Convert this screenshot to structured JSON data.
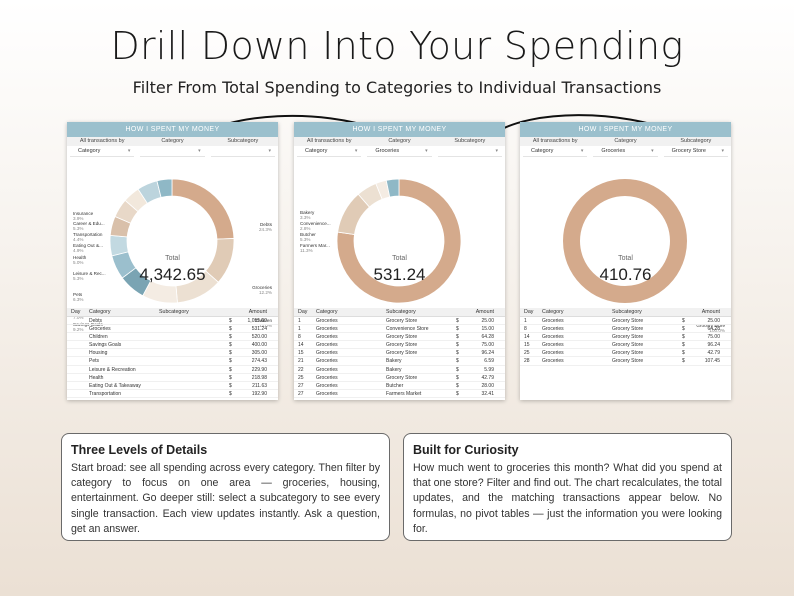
{
  "header": {
    "title": "Drill Down Into Your Spending",
    "subtitle": "Filter From Total Spending to Categories to Individual Transactions"
  },
  "panels": [
    {
      "heading": "HOW I SPENT MY MONEY",
      "filter_labels": [
        "All transactions by",
        "Category",
        "Subcategory"
      ],
      "filter_values": [
        "Category",
        "",
        ""
      ],
      "total_label": "Total",
      "total_value": "4,342.65",
      "segment_labels": [
        {
          "name": "Insurance",
          "pct": "3.9%"
        },
        {
          "name": "Career & Edu...",
          "pct": "5.3%"
        },
        {
          "name": "Transportation",
          "pct": "4.4%"
        },
        {
          "name": "Eating Out &...",
          "pct": "4.9%"
        },
        {
          "name": "Health",
          "pct": "5.0%"
        },
        {
          "name": "Leisure & Rec...",
          "pct": "5.3%"
        },
        {
          "name": "Pets",
          "pct": "6.3%"
        },
        {
          "name": "Housing",
          "pct": "7.0%"
        },
        {
          "name": "Savings Goals",
          "pct": "9.2%"
        },
        {
          "name": "Debts",
          "pct": "24.3%"
        },
        {
          "name": "Groceries",
          "pct": "12.2%"
        },
        {
          "name": "Children",
          "pct": "12.0%"
        }
      ],
      "table_headers": [
        "Day",
        "Category",
        "Subcategory",
        "Amount"
      ],
      "rows": [
        [
          "",
          "Debts",
          "",
          "$",
          "1,055.00"
        ],
        [
          "",
          "Groceries",
          "",
          "$",
          "531.24"
        ],
        [
          "",
          "Children",
          "",
          "$",
          "520.00"
        ],
        [
          "",
          "Savings Goals",
          "",
          "$",
          "400.00"
        ],
        [
          "",
          "Housing",
          "",
          "$",
          "305.00"
        ],
        [
          "",
          "Pets",
          "",
          "$",
          "274.43"
        ],
        [
          "",
          "Leisure & Recreation",
          "",
          "$",
          "229.90"
        ],
        [
          "",
          "Health",
          "",
          "$",
          "218.98"
        ],
        [
          "",
          "Eating Out & Takeaway",
          "",
          "$",
          "211.63"
        ],
        [
          "",
          "Transportation",
          "",
          "$",
          "192.90"
        ]
      ]
    },
    {
      "heading": "HOW I SPENT MY MONEY",
      "filter_labels": [
        "All transactions by",
        "Category",
        "Subcategory"
      ],
      "filter_values": [
        "Category",
        "Groceries",
        ""
      ],
      "total_label": "Total",
      "total_value": "531.24",
      "segment_labels": [
        {
          "name": "Bakery",
          "pct": "3.3%"
        },
        {
          "name": "Convenience...",
          "pct": "2.8%"
        },
        {
          "name": "Butcher",
          "pct": "5.3%"
        },
        {
          "name": "Farmers Mar...",
          "pct": "11.3%"
        },
        {
          "name": "Grocery Store",
          "pct": "77.3%"
        }
      ],
      "table_headers": [
        "Day",
        "Category",
        "Subcategory",
        "Amount"
      ],
      "rows": [
        [
          "1",
          "Groceries",
          "Grocery Store",
          "$",
          "25.00"
        ],
        [
          "1",
          "Groceries",
          "Convenience Store",
          "$",
          "15.00"
        ],
        [
          "8",
          "Groceries",
          "Grocery Store",
          "$",
          "64.28"
        ],
        [
          "14",
          "Groceries",
          "Grocery Store",
          "$",
          "75.00"
        ],
        [
          "15",
          "Groceries",
          "Grocery Store",
          "$",
          "96.24"
        ],
        [
          "21",
          "Groceries",
          "Bakery",
          "$",
          "6.59"
        ],
        [
          "22",
          "Groceries",
          "Bakery",
          "$",
          "5.99"
        ],
        [
          "25",
          "Groceries",
          "Grocery Store",
          "$",
          "42.79"
        ],
        [
          "27",
          "Groceries",
          "Butcher",
          "$",
          "28.00"
        ],
        [
          "27",
          "Groceries",
          "Farmers Market",
          "$",
          "32.41"
        ]
      ]
    },
    {
      "heading": "HOW I SPENT MY MONEY",
      "filter_labels": [
        "All transactions by",
        "Category",
        "Subcategory"
      ],
      "filter_values": [
        "Category",
        "Groceries",
        "Grocery Store"
      ],
      "total_label": "Total",
      "total_value": "410.76",
      "segment_labels": [
        {
          "name": "Grocery Store",
          "pct": "100.0%"
        }
      ],
      "table_headers": [
        "Day",
        "Category",
        "Subcategory",
        "Amount"
      ],
      "rows": [
        [
          "1",
          "Groceries",
          "Grocery Store",
          "$",
          "25.00"
        ],
        [
          "8",
          "Groceries",
          "Grocery Store",
          "$",
          "64.28"
        ],
        [
          "14",
          "Groceries",
          "Grocery Store",
          "$",
          "75.00"
        ],
        [
          "15",
          "Groceries",
          "Grocery Store",
          "$",
          "96.24"
        ],
        [
          "25",
          "Groceries",
          "Grocery Store",
          "$",
          "42.79"
        ],
        [
          "28",
          "Groceries",
          "Grocery Store",
          "$",
          "107.45"
        ]
      ]
    }
  ],
  "info_boxes": [
    {
      "title": "Three Levels of Details",
      "text": "Start broad: see all spending across every category. Then filter by category to focus on one area — groceries, housing, entertainment. Go deeper still: select a subcategory to see every single transaction. Each view updates instantly. Ask a question, get an answer."
    },
    {
      "title": "Built for Curiosity",
      "text": "How much went to groceries this month? What did you spend at that one store? Filter and find out. The chart recalculates, the total updates, and the matching transactions appear below. No formulas, no pivot tables — just the information you were looking for."
    }
  ],
  "chart_data": [
    {
      "type": "pie",
      "categories": [
        "Debts",
        "Groceries",
        "Children",
        "Savings Goals",
        "Housing",
        "Pets",
        "Leisure & Rec...",
        "Health",
        "Eating Out &...",
        "Transportation",
        "Career & Edu...",
        "Insurance"
      ],
      "values": [
        24.3,
        12.2,
        12.0,
        9.2,
        7.0,
        6.3,
        5.3,
        5.0,
        4.9,
        4.4,
        5.3,
        3.9
      ],
      "colors": [
        "#d4aa8c",
        "#e0cbb6",
        "#ece0d2",
        "#f4ece3",
        "#7aa4b3",
        "#9bbfcd",
        "#c2d9e1",
        "#d9c0aa",
        "#e8d8c8",
        "#f2e8dc",
        "#bcd4dd",
        "#8fb8c6"
      ]
    },
    {
      "type": "pie",
      "categories": [
        "Grocery Store",
        "Farmers Mar...",
        "Butcher",
        "Convenience...",
        "Bakery"
      ],
      "values": [
        77.3,
        11.3,
        5.3,
        2.8,
        3.3
      ],
      "colors": [
        "#d4aa8c",
        "#e0cbb6",
        "#ece0d2",
        "#f4ece3",
        "#8fb8c6"
      ]
    },
    {
      "type": "pie",
      "categories": [
        "Grocery Store"
      ],
      "values": [
        100.0
      ],
      "colors": [
        "#d4aa8c"
      ]
    }
  ]
}
